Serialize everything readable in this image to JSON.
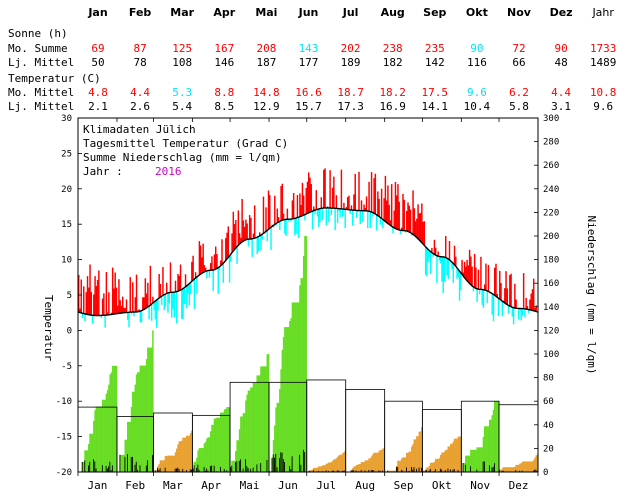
{
  "stats": {
    "months": [
      "Jan",
      "Feb",
      "Mar",
      "Apr",
      "Mai",
      "Jun",
      "Jul",
      "Aug",
      "Sep",
      "Okt",
      "Nov",
      "Dez"
    ],
    "year_label": "Jahr",
    "sonne_title": "Sonne (h)",
    "mo_summe_label": "Mo. Summe",
    "lj_mittel_label": "Lj. Mittel",
    "sonne_mo_summe": [
      "69",
      "87",
      "125",
      "167",
      "208",
      "143",
      "202",
      "238",
      "235",
      "90",
      "72",
      "90",
      "1733"
    ],
    "sonne_mo_summe_colors": [
      "#ff0000",
      "#ff0000",
      "#ff0000",
      "#ff0000",
      "#ff0000",
      "#00e5ff",
      "#ff0000",
      "#ff0000",
      "#ff0000",
      "#00e5ff",
      "#ff0000",
      "#ff0000",
      "#ff0000"
    ],
    "sonne_lj_mittel": [
      "50",
      "78",
      "108",
      "146",
      "187",
      "177",
      "189",
      "182",
      "142",
      "116",
      "66",
      "48",
      "1489"
    ],
    "temp_title": "Temperatur (C)",
    "temp_mo_mittel_label": "Mo. Mittel",
    "temp_lj_mittel_label": "Lj. Mittel",
    "temp_mo_mittel": [
      "4.8",
      "4.4",
      "5.3",
      "8.8",
      "14.8",
      "16.6",
      "18.7",
      "18.2",
      "17.5",
      "9.6",
      "6.2",
      "4.4",
      "10.8"
    ],
    "temp_mo_mittel_colors": [
      "#ff0000",
      "#ff0000",
      "#00e5ff",
      "#ff0000",
      "#ff0000",
      "#ff0000",
      "#ff0000",
      "#ff0000",
      "#ff0000",
      "#00e5ff",
      "#ff0000",
      "#ff0000",
      "#ff0000"
    ],
    "temp_lj_mittel": [
      "2.1",
      "2.6",
      "5.4",
      "8.5",
      "12.9",
      "15.7",
      "17.3",
      "16.9",
      "14.1",
      "10.4",
      "5.8",
      "3.1",
      "9.6"
    ]
  },
  "chart_data": {
    "type": "bar",
    "legend_lines": [
      "Klimadaten Jülich",
      "Tagesmittel Temperatur (Grad C)",
      "Summe Niederschlag (mm = l/qm)"
    ],
    "jahr_label": "Jahr :",
    "jahr_value": "2016",
    "ylabel_left": "Temperatur",
    "ylabel_right": "Niederschlag (mm = l/qm)",
    "x_categories": [
      "Jan",
      "Feb",
      "Mar",
      "Apr",
      "Mai",
      "Jun",
      "Jul",
      "Aug",
      "Sep",
      "Okt",
      "Nov",
      "Dez"
    ],
    "ylim_left": [
      -20,
      30
    ],
    "yticks_left": [
      30,
      25,
      20,
      15,
      10,
      5,
      0,
      -5,
      -10,
      -15,
      -20
    ],
    "ylim_right": [
      0,
      300
    ],
    "yticks_right": [
      300,
      280,
      260,
      240,
      220,
      200,
      180,
      160,
      140,
      120,
      100,
      80,
      60,
      40,
      20,
      0
    ],
    "colors": {
      "warmer": "#ff0000",
      "colder": "#00ffff",
      "precip_above": "#66dd22",
      "precip_below": "#e8a030",
      "daily_precip": "#000000",
      "climate_line": "#000000"
    },
    "long_term_daily_mean_by_month": [
      2.1,
      2.6,
      5.4,
      8.5,
      12.9,
      15.7,
      17.3,
      16.9,
      14.1,
      10.4,
      5.8,
      3.1
    ],
    "daily_mean_monthly": [
      4.8,
      4.4,
      5.3,
      8.8,
      14.8,
      16.6,
      18.7,
      18.2,
      17.5,
      9.6,
      6.2,
      4.4
    ],
    "precip_monthly_total": [
      90,
      120,
      35,
      55,
      100,
      200,
      18,
      20,
      38,
      30,
      60,
      15
    ],
    "precip_long_term_monthly": [
      55,
      47,
      50,
      48,
      76,
      76,
      78,
      70,
      60,
      53,
      60,
      57
    ]
  }
}
